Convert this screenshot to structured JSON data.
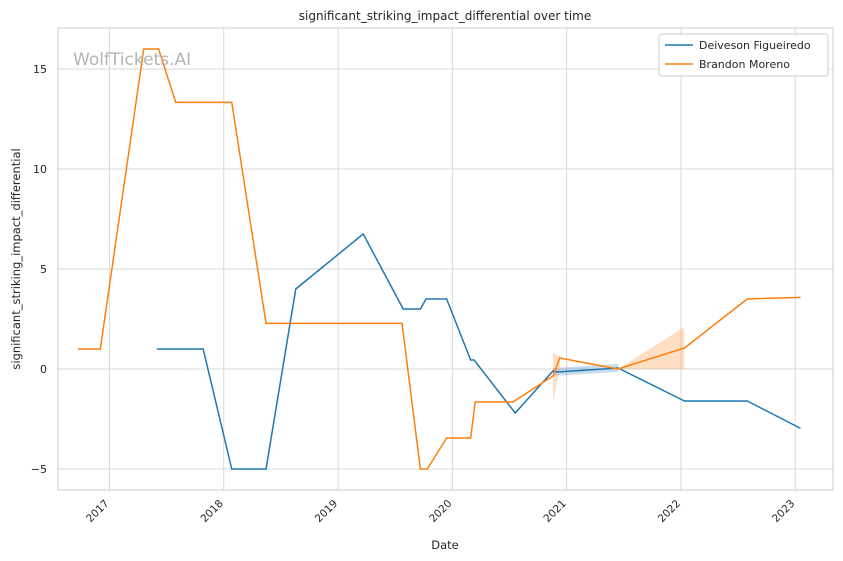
{
  "chart_data": {
    "type": "line",
    "title": "significant_striking_impact_differential over time",
    "xlabel": "Date",
    "ylabel": "significant_striking_impact_differential",
    "watermark": "WolfTickets.AI",
    "x_ticks": [
      "2017",
      "2018",
      "2019",
      "2020",
      "2021",
      "2022",
      "2023"
    ],
    "y_ticks": [
      "−5",
      "0",
      "5",
      "10",
      "15"
    ],
    "xlim": [
      2016.55,
      2023.33
    ],
    "ylim": [
      -6.05,
      17.05
    ],
    "grid": true,
    "legend_position": "top-right",
    "series": [
      {
        "name": "Deiveson Figueiredo",
        "color": "#1f77b4",
        "points": [
          [
            2017.42,
            1.0
          ],
          [
            2017.82,
            1.0
          ],
          [
            2018.07,
            -5.0
          ],
          [
            2018.37,
            -5.0
          ],
          [
            2018.63,
            4.0
          ],
          [
            2019.22,
            6.75
          ],
          [
            2019.57,
            3.0
          ],
          [
            2019.72,
            3.0
          ],
          [
            2019.77,
            3.5
          ],
          [
            2019.95,
            3.5
          ],
          [
            2020.16,
            0.45
          ],
          [
            2020.19,
            0.45
          ],
          [
            2020.55,
            -2.2
          ],
          [
            2020.88,
            -0.1
          ],
          [
            2020.92,
            -0.15
          ],
          [
            2021.45,
            0.05
          ],
          [
            2022.03,
            -1.6
          ],
          [
            2022.58,
            -1.6
          ],
          [
            2023.04,
            -2.95
          ]
        ]
      },
      {
        "name": "Brandon Moreno",
        "color": "#ff7f0e",
        "points": [
          [
            2016.73,
            1.0
          ],
          [
            2016.92,
            1.0
          ],
          [
            2017.3,
            16.0
          ],
          [
            2017.43,
            16.0
          ],
          [
            2017.58,
            13.33
          ],
          [
            2018.07,
            13.33
          ],
          [
            2018.37,
            2.28
          ],
          [
            2019.56,
            2.28
          ],
          [
            2019.72,
            -5.0
          ],
          [
            2019.78,
            -5.0
          ],
          [
            2019.95,
            -3.45
          ],
          [
            2020.16,
            -3.45
          ],
          [
            2020.2,
            -1.65
          ],
          [
            2020.53,
            -1.65
          ],
          [
            2020.88,
            -0.35
          ],
          [
            2020.94,
            0.55
          ],
          [
            2021.45,
            0.0
          ],
          [
            2022.03,
            1.05
          ],
          [
            2022.58,
            3.5
          ],
          [
            2023.04,
            3.58
          ]
        ]
      }
    ],
    "bands": [
      {
        "series": "Deiveson Figueiredo",
        "color": "#1f77b4",
        "x": [
          2020.88,
          2021.45
        ],
        "low": [
          -0.35,
          -0.15
        ],
        "high": [
          0.05,
          0.25
        ]
      },
      {
        "series": "Brandon Moreno",
        "color": "#ff7f0e",
        "x": [
          2020.88,
          2020.94
        ],
        "low": [
          -1.6,
          0.0
        ],
        "high": [
          0.8,
          0.6
        ]
      },
      {
        "series": "Brandon Moreno",
        "color": "#ff7f0e",
        "x": [
          2021.45,
          2022.03
        ],
        "low": [
          0.0,
          0.0
        ],
        "high": [
          0.0,
          2.1
        ]
      }
    ]
  }
}
